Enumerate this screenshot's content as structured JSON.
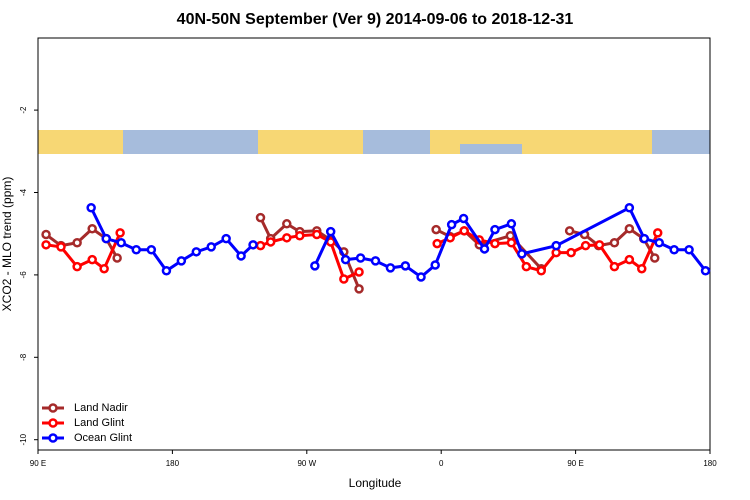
{
  "chart_data": {
    "type": "line",
    "title": "40N-50N September (Ver 9)   2014-09-06 to 2018-12-31",
    "x_label": "Longitude",
    "y_label": "XCO2 - MLO trend (ppm)",
    "xlim": [
      90,
      540
    ],
    "ylim": [
      -10.25,
      -0.25
    ],
    "xticks": [
      {
        "value": 90,
        "label": "90 E"
      },
      {
        "value": 180,
        "label": "180"
      },
      {
        "value": 270,
        "label": "90 W"
      },
      {
        "value": 360,
        "label": "0"
      },
      {
        "value": 450,
        "label": "90 E"
      },
      {
        "value": 540,
        "label": "180"
      }
    ],
    "yticks": [
      -10,
      -8,
      -6,
      -4,
      -2
    ],
    "legend": "bottom-left",
    "series": [
      {
        "name": "Land Nadir",
        "color": "#a52a2a",
        "x": [
          95.4,
          105.4,
          116.2,
          126.3,
          135.7,
          143,
          null,
          239,
          245.8,
          256.6,
          265.3,
          276.7,
          286,
          294.8,
          305,
          null,
          356.6,
          366,
          375.4,
          385.5,
          406.3,
          427,
          null,
          446,
          456,
          465.4,
          476,
          486,
          495.6,
          503
        ],
        "values": [
          -5.02,
          -5.29,
          -5.22,
          -4.88,
          -5.12,
          -5.59,
          null,
          -4.61,
          -5.12,
          -4.76,
          -4.95,
          -4.93,
          -5.15,
          -5.44,
          -6.34,
          null,
          -4.9,
          -5.07,
          -4.93,
          -5.27,
          -5.05,
          -5.85,
          null,
          -4.93,
          -5.02,
          -5.29,
          -5.22,
          -4.88,
          -5.12,
          -5.59
        ]
      },
      {
        "name": "Land Glint",
        "color": "#ff0000",
        "x": [
          95.4,
          105.4,
          116.2,
          126.3,
          134.3,
          145,
          null,
          239,
          245.8,
          256.6,
          265.3,
          276.7,
          286,
          294.8,
          305,
          null,
          357.3,
          366,
          375.4,
          385.5,
          396,
          407,
          417,
          427,
          437,
          447,
          456.7,
          466,
          476,
          486,
          494.3,
          505
        ],
        "values": [
          -5.27,
          -5.32,
          -5.8,
          -5.63,
          -5.85,
          -4.98,
          null,
          -5.29,
          -5.2,
          -5.1,
          -5.05,
          -5.02,
          -5.2,
          -6.1,
          -5.93,
          null,
          -5.24,
          -5.1,
          -4.93,
          -5.15,
          -5.24,
          -5.22,
          -5.8,
          -5.9,
          -5.46,
          -5.46,
          -5.29,
          -5.27,
          -5.8,
          -5.63,
          -5.85,
          -4.98
        ]
      },
      {
        "name": "Ocean Glint",
        "color": "#0000ff",
        "x": [
          125.6,
          135.7,
          145.7,
          155.8,
          165.9,
          176,
          186,
          196,
          206,
          216,
          226,
          234,
          null,
          275.4,
          286,
          296,
          306,
          316,
          326,
          336,
          346.5,
          356,
          367,
          375,
          389,
          396,
          407,
          414,
          437,
          486,
          496,
          506,
          516,
          526,
          537
        ],
        "values": [
          -4.37,
          -5.12,
          -5.22,
          -5.39,
          -5.39,
          -5.9,
          -5.66,
          -5.44,
          -5.32,
          -5.12,
          -5.54,
          -5.27,
          null,
          -5.78,
          -4.95,
          -5.63,
          -5.59,
          -5.66,
          -5.83,
          -5.78,
          -6.05,
          -5.76,
          -4.78,
          -4.63,
          -5.37,
          -4.9,
          -4.76,
          -5.49,
          -5.29,
          -4.37,
          -5.12,
          -5.22,
          -5.39,
          -5.39,
          -5.9
        ]
      }
    ]
  }
}
